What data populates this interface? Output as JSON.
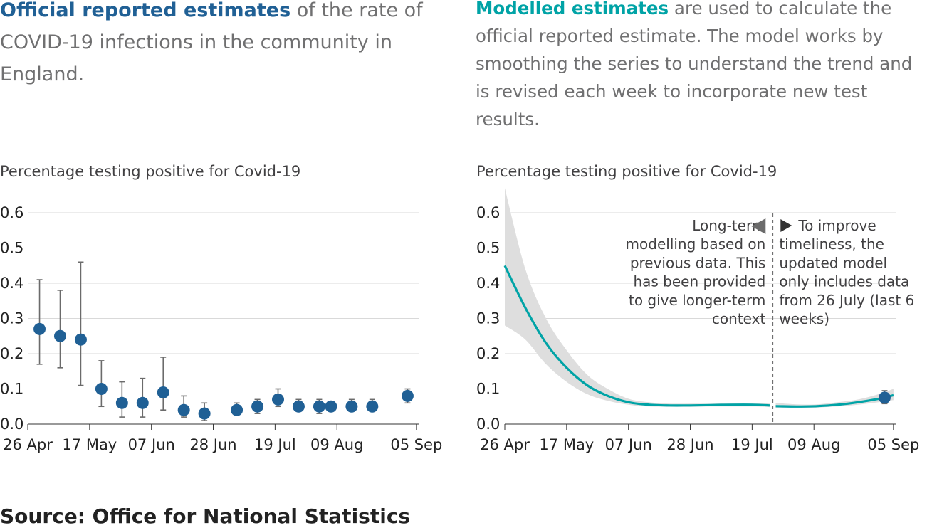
{
  "intro_left": {
    "highlight": "Official reported estimates",
    "text": " of the rate of COVID-19 infections in the community in England."
  },
  "intro_right": {
    "highlight": "Modelled estimates",
    "text": " are used to calculate the official reported estimate. The model works by smoothing the series to understand the trend and is revised each week to incorporate new test results."
  },
  "source": "Source: Office for National Statistics",
  "colors": {
    "official": "#206095",
    "modelled": "#00a3a6",
    "band": "#dedede",
    "grid": "#d9d9d9"
  },
  "chart_data": [
    {
      "type": "scatter",
      "ylabel": "Percentage testing positive for Covid-19",
      "ylim": [
        0,
        0.6
      ],
      "yticks": [
        "0.0",
        "0.1",
        "0.2",
        "0.3",
        "0.4",
        "0.5",
        "0.6"
      ],
      "xrange": [
        "2020-04-26",
        "2020-09-06"
      ],
      "xticks": [
        {
          "date": "2020-04-26",
          "label": "26 Apr"
        },
        {
          "date": "2020-05-17",
          "label": "17 May"
        },
        {
          "date": "2020-06-07",
          "label": "07 Jun"
        },
        {
          "date": "2020-06-28",
          "label": "28 Jun"
        },
        {
          "date": "2020-07-19",
          "label": "19 Jul"
        },
        {
          "date": "2020-08-09",
          "label": "09 Aug"
        },
        {
          "date": "2020-09-05",
          "label": "05 Sep"
        }
      ],
      "grid": true,
      "series": [
        {
          "points": [
            {
              "x": "2020-04-30",
              "y": 0.27,
              "lo": 0.17,
              "hi": 0.41
            },
            {
              "x": "2020-05-07",
              "y": 0.25,
              "lo": 0.16,
              "hi": 0.38
            },
            {
              "x": "2020-05-14",
              "y": 0.24,
              "lo": 0.11,
              "hi": 0.46
            },
            {
              "x": "2020-05-21",
              "y": 0.1,
              "lo": 0.05,
              "hi": 0.18
            },
            {
              "x": "2020-05-28",
              "y": 0.06,
              "lo": 0.02,
              "hi": 0.12
            },
            {
              "x": "2020-06-04",
              "y": 0.06,
              "lo": 0.02,
              "hi": 0.13
            },
            {
              "x": "2020-06-11",
              "y": 0.09,
              "lo": 0.04,
              "hi": 0.19
            },
            {
              "x": "2020-06-18",
              "y": 0.04,
              "lo": 0.02,
              "hi": 0.08
            },
            {
              "x": "2020-06-25",
              "y": 0.03,
              "lo": 0.01,
              "hi": 0.06
            },
            {
              "x": "2020-07-06",
              "y": 0.04,
              "lo": 0.03,
              "hi": 0.06
            },
            {
              "x": "2020-07-13",
              "y": 0.05,
              "lo": 0.03,
              "hi": 0.07
            },
            {
              "x": "2020-07-20",
              "y": 0.07,
              "lo": 0.05,
              "hi": 0.1
            },
            {
              "x": "2020-07-27",
              "y": 0.05,
              "lo": 0.04,
              "hi": 0.07
            },
            {
              "x": "2020-08-03",
              "y": 0.05,
              "lo": 0.03,
              "hi": 0.07
            },
            {
              "x": "2020-08-07",
              "y": 0.05,
              "lo": 0.04,
              "hi": 0.06
            },
            {
              "x": "2020-08-14",
              "y": 0.05,
              "lo": 0.04,
              "hi": 0.07
            },
            {
              "x": "2020-08-21",
              "y": 0.05,
              "lo": 0.04,
              "hi": 0.07
            },
            {
              "x": "2020-09-02",
              "y": 0.08,
              "lo": 0.06,
              "hi": 0.1
            }
          ]
        }
      ]
    },
    {
      "type": "line",
      "ylabel": "Percentage testing positive for Covid-19",
      "ylim": [
        0,
        0.6
      ],
      "yticks": [
        "0.0",
        "0.1",
        "0.2",
        "0.3",
        "0.4",
        "0.5",
        "0.6"
      ],
      "xrange": [
        "2020-04-26",
        "2020-09-06"
      ],
      "xticks": [
        {
          "date": "2020-04-26",
          "label": "26 Apr"
        },
        {
          "date": "2020-05-17",
          "label": "17 May"
        },
        {
          "date": "2020-06-07",
          "label": "07 Jun"
        },
        {
          "date": "2020-06-28",
          "label": "28 Jun"
        },
        {
          "date": "2020-07-19",
          "label": "19 Jul"
        },
        {
          "date": "2020-08-09",
          "label": "09 Aug"
        },
        {
          "date": "2020-09-05",
          "label": "05 Sep"
        }
      ],
      "grid": true,
      "divider_date": "2020-07-26",
      "annotation_left": [
        "Long-term",
        "modelling based on",
        "previous data. This",
        "has been provided",
        "to give longer-term",
        "context"
      ],
      "annotation_right": [
        "To improve",
        "timeliness, the",
        "updated model",
        "only includes data",
        "from 26 July (last 6",
        "weeks)"
      ],
      "series": [
        {
          "segment": "long-term",
          "x": [
            "2020-04-26",
            "2020-05-03",
            "2020-05-10",
            "2020-05-17",
            "2020-05-24",
            "2020-05-31",
            "2020-06-07",
            "2020-06-14",
            "2020-06-21",
            "2020-06-28",
            "2020-07-05",
            "2020-07-12",
            "2020-07-19",
            "2020-07-25"
          ],
          "y": [
            0.45,
            0.33,
            0.23,
            0.16,
            0.11,
            0.08,
            0.062,
            0.055,
            0.053,
            0.053,
            0.054,
            0.055,
            0.055,
            0.053
          ],
          "lo": [
            0.28,
            0.24,
            0.17,
            0.12,
            0.085,
            0.066,
            0.055,
            0.05,
            0.049,
            0.049,
            0.05,
            0.05,
            0.05,
            0.048
          ],
          "hi": [
            0.67,
            0.44,
            0.3,
            0.21,
            0.14,
            0.1,
            0.072,
            0.062,
            0.058,
            0.058,
            0.058,
            0.06,
            0.06,
            0.058
          ]
        },
        {
          "segment": "updated",
          "x": [
            "2020-07-27",
            "2020-08-03",
            "2020-08-10",
            "2020-08-17",
            "2020-08-24",
            "2020-08-31",
            "2020-09-05"
          ],
          "y": [
            0.051,
            0.05,
            0.051,
            0.055,
            0.062,
            0.072,
            0.082
          ],
          "lo": [
            0.045,
            0.045,
            0.047,
            0.05,
            0.055,
            0.062,
            0.068
          ],
          "hi": [
            0.06,
            0.056,
            0.056,
            0.062,
            0.07,
            0.085,
            0.1
          ]
        }
      ],
      "latest_estimate": {
        "x": "2020-09-02",
        "y": 0.075,
        "lo": 0.058,
        "hi": 0.095
      }
    }
  ]
}
